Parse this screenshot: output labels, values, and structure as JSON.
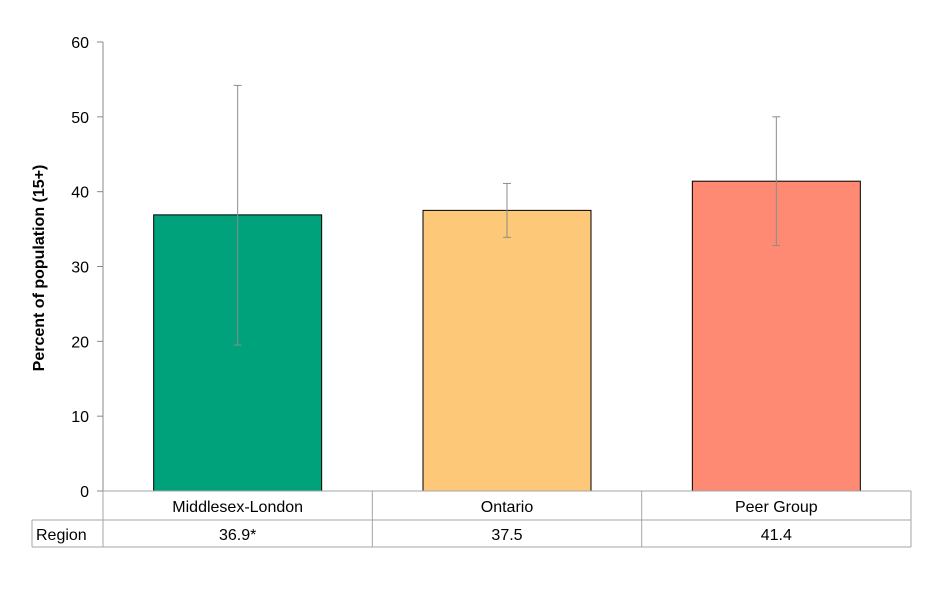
{
  "chart_data": {
    "type": "bar",
    "ylabel": "Percent of population (15+)",
    "ylim": [
      0,
      60
    ],
    "yticks": [
      0,
      10,
      20,
      30,
      40,
      50,
      60
    ],
    "categories": [
      "Middlesex-London",
      "Ontario",
      "Peer Group"
    ],
    "values": [
      36.9,
      37.5,
      41.4
    ],
    "error_low": [
      19.5,
      33.9,
      32.8
    ],
    "error_high": [
      54.2,
      41.1,
      50.0
    ],
    "colors": [
      "#00a27b",
      "#fdc878",
      "#ff8a74"
    ],
    "table": {
      "row_label": "Region",
      "cells": [
        "36.9*",
        "37.5",
        "41.4"
      ]
    },
    "grid": false,
    "legend": "none"
  }
}
